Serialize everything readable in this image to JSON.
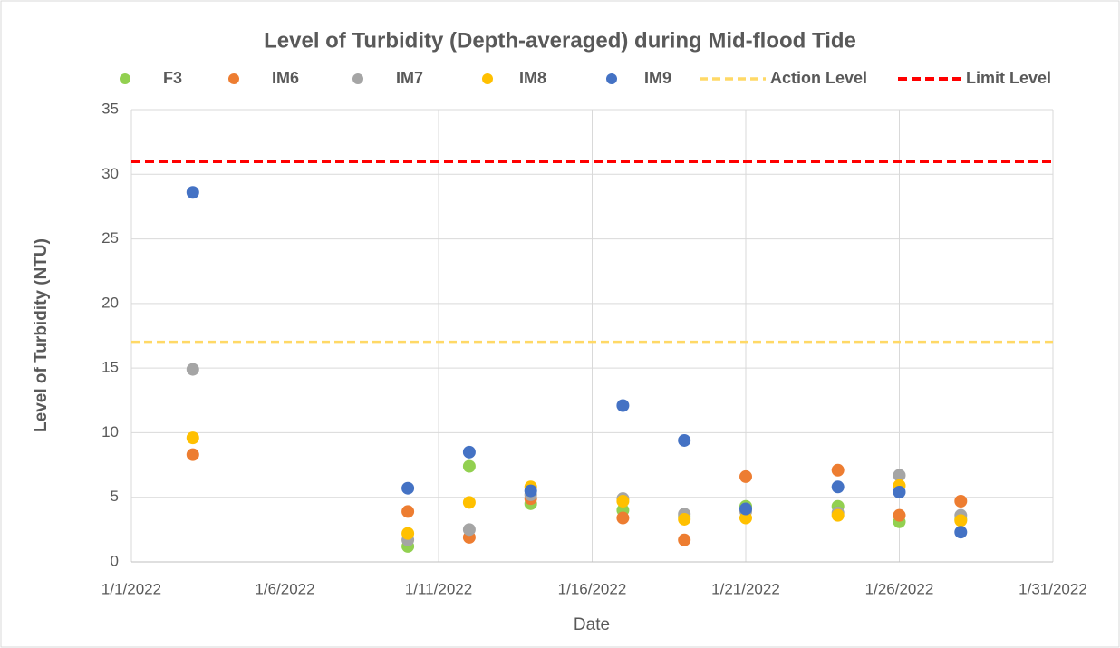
{
  "chart_data": {
    "type": "scatter",
    "title": "Level of Turbidity (Depth-averaged) during Mid-flood Tide",
    "x_label": "Date",
    "y_label": "Level of Turbidity (NTU)",
    "x": [
      "1/3/2022",
      "1/10/2022",
      "1/12/2022",
      "1/14/2022",
      "1/17/2022",
      "1/19/2022",
      "1/21/2022",
      "1/24/2022",
      "1/26/2022",
      "1/28/2022"
    ],
    "series": [
      {
        "name": "F3",
        "color": "#92d050",
        "values": [
          null,
          1.2,
          7.4,
          4.5,
          4.0,
          3.5,
          4.3,
          4.3,
          3.1,
          3.3
        ]
      },
      {
        "name": "IM6",
        "color": "#ed7d31",
        "values": [
          8.3,
          3.9,
          1.9,
          4.9,
          3.4,
          1.7,
          6.6,
          7.1,
          3.6,
          4.7
        ]
      },
      {
        "name": "IM7",
        "color": "#a5a5a5",
        "values": [
          14.9,
          1.7,
          2.5,
          5.2,
          4.9,
          3.7,
          3.9,
          3.8,
          6.7,
          3.6
        ]
      },
      {
        "name": "IM8",
        "color": "#ffc000",
        "values": [
          9.6,
          2.2,
          4.6,
          5.8,
          4.7,
          3.3,
          3.4,
          3.6,
          5.9,
          3.2
        ]
      },
      {
        "name": "IM9",
        "color": "#4472c4",
        "values": [
          28.6,
          5.7,
          8.5,
          5.5,
          12.1,
          9.4,
          4.1,
          5.8,
          5.4,
          2.3
        ]
      }
    ],
    "reference_lines": [
      {
        "name": "Action Level",
        "color": "#ffd966",
        "value": 17
      },
      {
        "name": "Limit Level",
        "color": "#ff0000",
        "value": 31
      }
    ],
    "xlim": [
      "1/1/2022",
      "1/31/2022"
    ],
    "xticks": [
      "1/1/2022",
      "1/6/2022",
      "1/11/2022",
      "1/16/2022",
      "1/21/2022",
      "1/26/2022",
      "1/31/2022"
    ],
    "ylim": [
      0,
      35
    ],
    "yticks": [
      0,
      5,
      10,
      15,
      20,
      25,
      30,
      35
    ],
    "grid": true,
    "legend": "top"
  }
}
